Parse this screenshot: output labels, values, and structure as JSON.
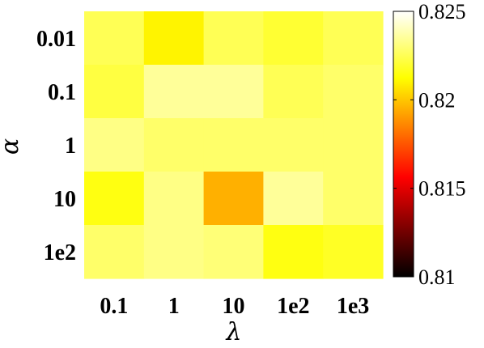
{
  "chart_data": {
    "type": "heatmap",
    "xlabel": "λ",
    "ylabel": "α",
    "x_categories": [
      "0.1",
      "1",
      "10",
      "1e2",
      "1e3"
    ],
    "y_categories": [
      "0.01",
      "0.1",
      "1",
      "10",
      "1e2"
    ],
    "values": [
      [
        0.8225,
        0.821,
        0.8225,
        0.822,
        0.8225
      ],
      [
        0.8222,
        0.8235,
        0.8235,
        0.8225,
        0.8228
      ],
      [
        0.8232,
        0.8228,
        0.8228,
        0.8228,
        0.8228
      ],
      [
        0.8215,
        0.8232,
        0.8195,
        0.8235,
        0.8228
      ],
      [
        0.8228,
        0.8232,
        0.823,
        0.8215,
        0.8218
      ]
    ],
    "colorbar": {
      "colormap": "hot",
      "min": 0.81,
      "max": 0.825,
      "ticks": [
        "0.825",
        "0.82",
        "0.815",
        "0.81"
      ]
    }
  }
}
